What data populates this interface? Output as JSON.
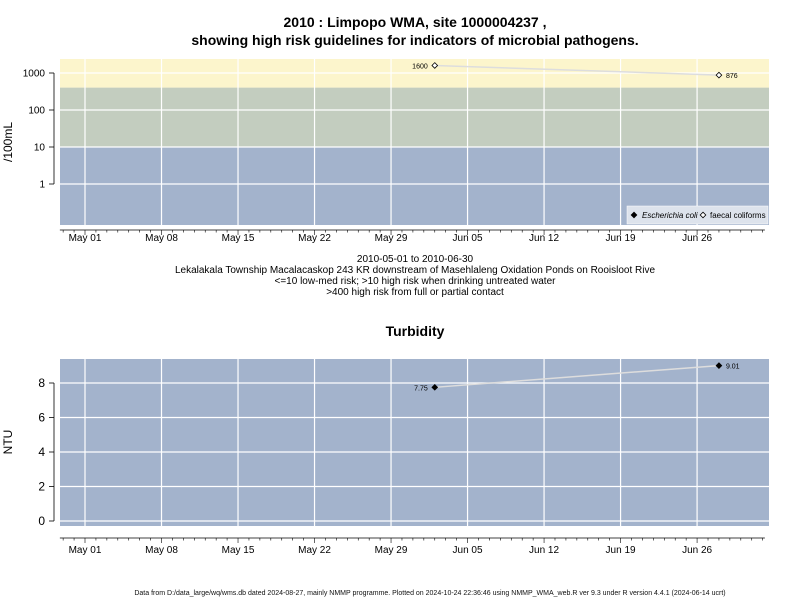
{
  "titles": {
    "main_line1": "2010 : Limpopo WMA, site 1000004237 ,",
    "main_line2": "showing high risk guidelines for indicators of microbial pathogens.",
    "turbidity": "Turbidity"
  },
  "captions": {
    "date_range": "2010-05-01 to 2010-06-30",
    "site_desc": "Lekalakala Township Macalacaskop 243 KR downstream of Masehlaleng Oxidation Ponds on Rooisloot Rive",
    "risk_note1": "<=10 low-med risk; >10 high risk when drinking untreated water",
    "risk_note2": ">400 high risk from full or partial contact"
  },
  "footer": "Data from D:/data_large/wq/wms.db dated 2024-08-27, mainly NMMP programme. Plotted on 2024-10-24 22:36:46 using NMMP_WMA_web.R ver 9.3 under R version 4.4.1 (2024-06-14 ucrt)",
  "colors": {
    "zone_high": "#fcf5cc",
    "zone_med": "#c3cdbf",
    "zone_low": "#a3b3cc",
    "panel_bg": "#a3b3cc",
    "grid": "#ffffff",
    "line": "#dddddd",
    "point": "#000000"
  },
  "chart_data": [
    {
      "type": "scatter",
      "title": "",
      "xlabel": "",
      "ylabel": "/100mL",
      "yscale": "log",
      "x_ticks": [
        "May 01",
        "May 08",
        "May 15",
        "May 22",
        "May 29",
        "Jun 05",
        "Jun 12",
        "Jun 19",
        "Jun 26"
      ],
      "y_ticks": [
        "1",
        "10",
        "100",
        "1000"
      ],
      "bands": [
        {
          "from": 0.05,
          "to": 10,
          "risk": "low-med (drinking)"
        },
        {
          "from": 10,
          "to": 400,
          "risk": "high (drinking)"
        },
        {
          "from": 400,
          "to": 2500,
          "risk": "high (contact)"
        }
      ],
      "series": [
        {
          "name": "Escherichia coli",
          "marker": "filled-diamond",
          "points": []
        },
        {
          "name": "faecal coliforms",
          "marker": "open-diamond",
          "points": [
            {
              "x": "2010-06-02",
              "y": 1600,
              "label": "1600"
            },
            {
              "x": "2010-06-28",
              "y": 876,
              "label": "876"
            }
          ]
        }
      ],
      "legend": "bottom-right",
      "grid": true
    },
    {
      "type": "line",
      "title": "Turbidity",
      "xlabel": "",
      "ylabel": "NTU",
      "x_ticks": [
        "May 01",
        "May 08",
        "May 15",
        "May 22",
        "May 29",
        "Jun 05",
        "Jun 12",
        "Jun 19",
        "Jun 26"
      ],
      "y_ticks": [
        "0",
        "2",
        "4",
        "6",
        "8"
      ],
      "series": [
        {
          "marker": "filled-diamond",
          "points": [
            {
              "x": "2010-06-02",
              "y": 7.75,
              "label": "7.75"
            },
            {
              "x": "2010-06-28",
              "y": 9.01,
              "label": "9.01"
            }
          ]
        }
      ],
      "grid": true
    }
  ]
}
